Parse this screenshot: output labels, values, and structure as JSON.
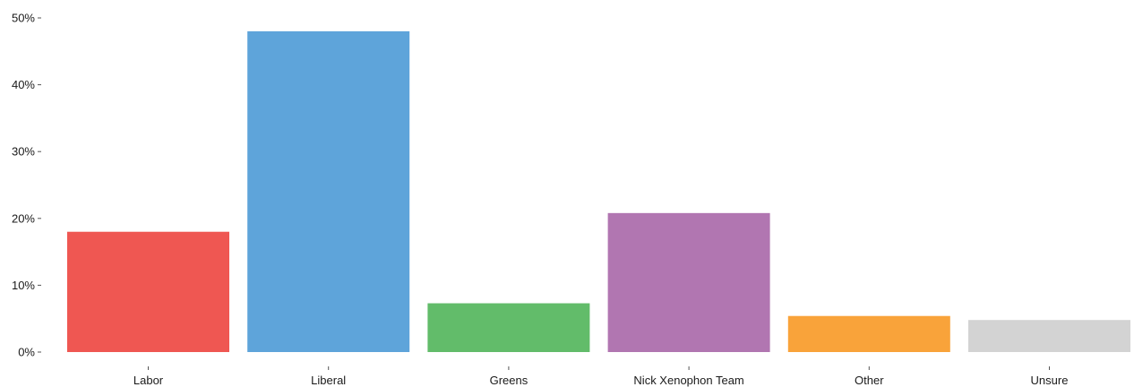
{
  "chart_data": {
    "type": "bar",
    "categories": [
      "Labor",
      "Liberal",
      "Greens",
      "Nick Xenophon Team",
      "Other",
      "Unsure"
    ],
    "values": [
      18,
      48,
      7.3,
      20.8,
      5.4,
      4.8
    ],
    "colors": [
      "#ef5752",
      "#5ea4da",
      "#62bc6a",
      "#b176b1",
      "#f9a33a",
      "#d3d3d3"
    ],
    "yticks": [
      0,
      10,
      20,
      30,
      40,
      50
    ],
    "ytick_labels": [
      "0%",
      "10%",
      "20%",
      "30%",
      "40%",
      "50%"
    ],
    "ylim": [
      0,
      50
    ],
    "grid": false,
    "title": "",
    "xlabel": "",
    "ylabel": ""
  }
}
